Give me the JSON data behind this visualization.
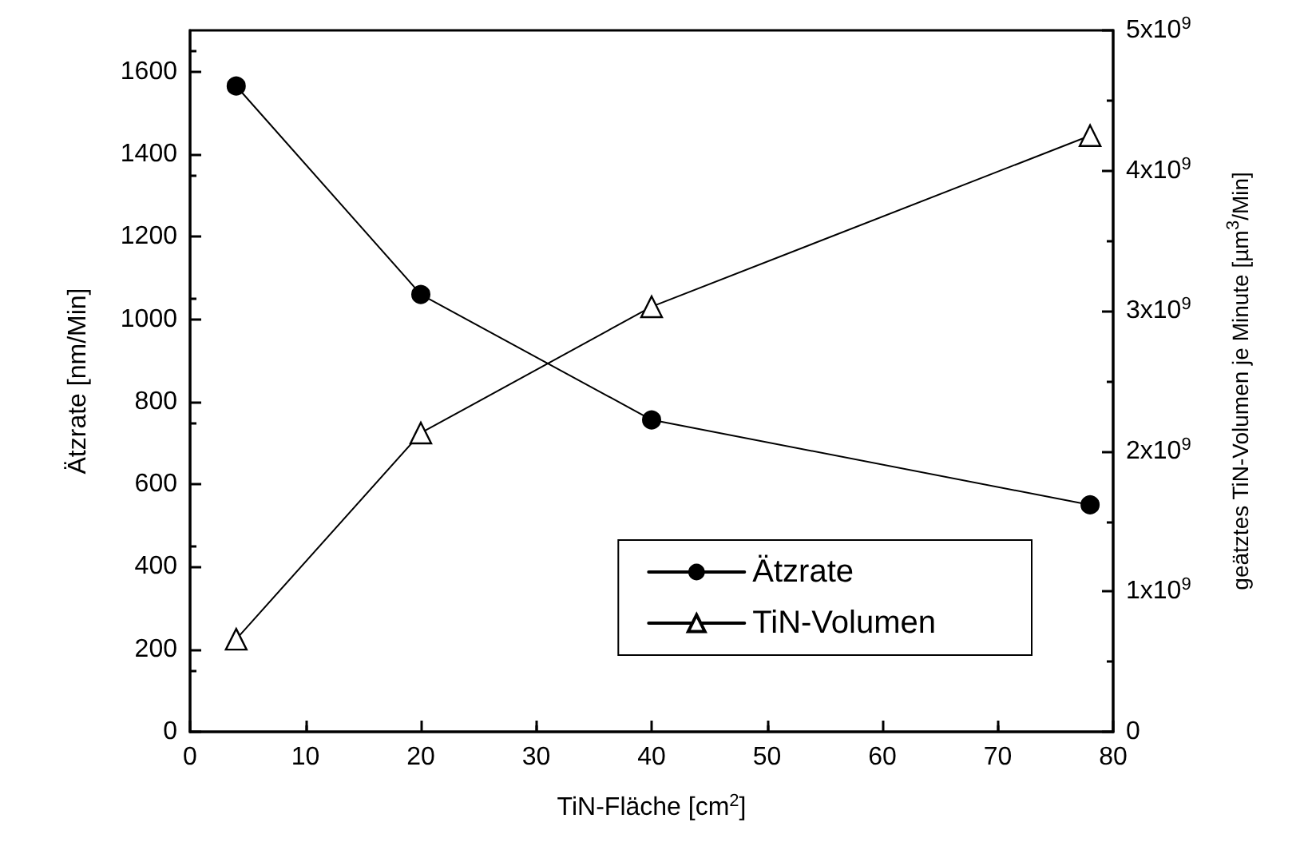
{
  "chart_data": {
    "type": "line",
    "xlabel": "TiN-Fläche [cm$^{2}$]",
    "ylabel": "Ätzrate [nm/Min]",
    "y2label": "geätztes TiN-Volumen je Minute [µm$^{3}$/Min]",
    "x": [
      4,
      20,
      40,
      78
    ],
    "series": [
      {
        "name": "Ätzrate",
        "color": "#000000",
        "marker": "circle",
        "values": [
          1565,
          1060,
          756,
          550
        ]
      },
      {
        "name": "TiN-Volumen",
        "color": "#000000",
        "marker": "triangle",
        "axis": "y2",
        "values": [
          660000000,
          2130000000,
          3030000000,
          4250000000
        ]
      }
    ],
    "xlim": [
      0,
      80
    ],
    "xticks": [
      0,
      10,
      20,
      30,
      40,
      50,
      60,
      70,
      80
    ],
    "ylim": [
      0,
      1700
    ],
    "yticks": [
      0,
      200,
      400,
      600,
      800,
      1000,
      1200,
      1400,
      1600
    ],
    "y2lim": [
      0,
      5000000000
    ],
    "y2ticks": [
      {
        "value": 0,
        "label": "0"
      },
      {
        "value": 1000000000,
        "label": "1x10$^{9}$"
      },
      {
        "value": 2000000000,
        "label": "2x10$^{9}$"
      },
      {
        "value": 3000000000,
        "label": "3x10$^{9}$"
      },
      {
        "value": 4000000000,
        "label": "4x10$^{9}$"
      },
      {
        "value": 5000000000,
        "label": "5x10$^{9}$"
      }
    ],
    "legend": "bottom right",
    "grid": false,
    "line_style": "solid"
  }
}
